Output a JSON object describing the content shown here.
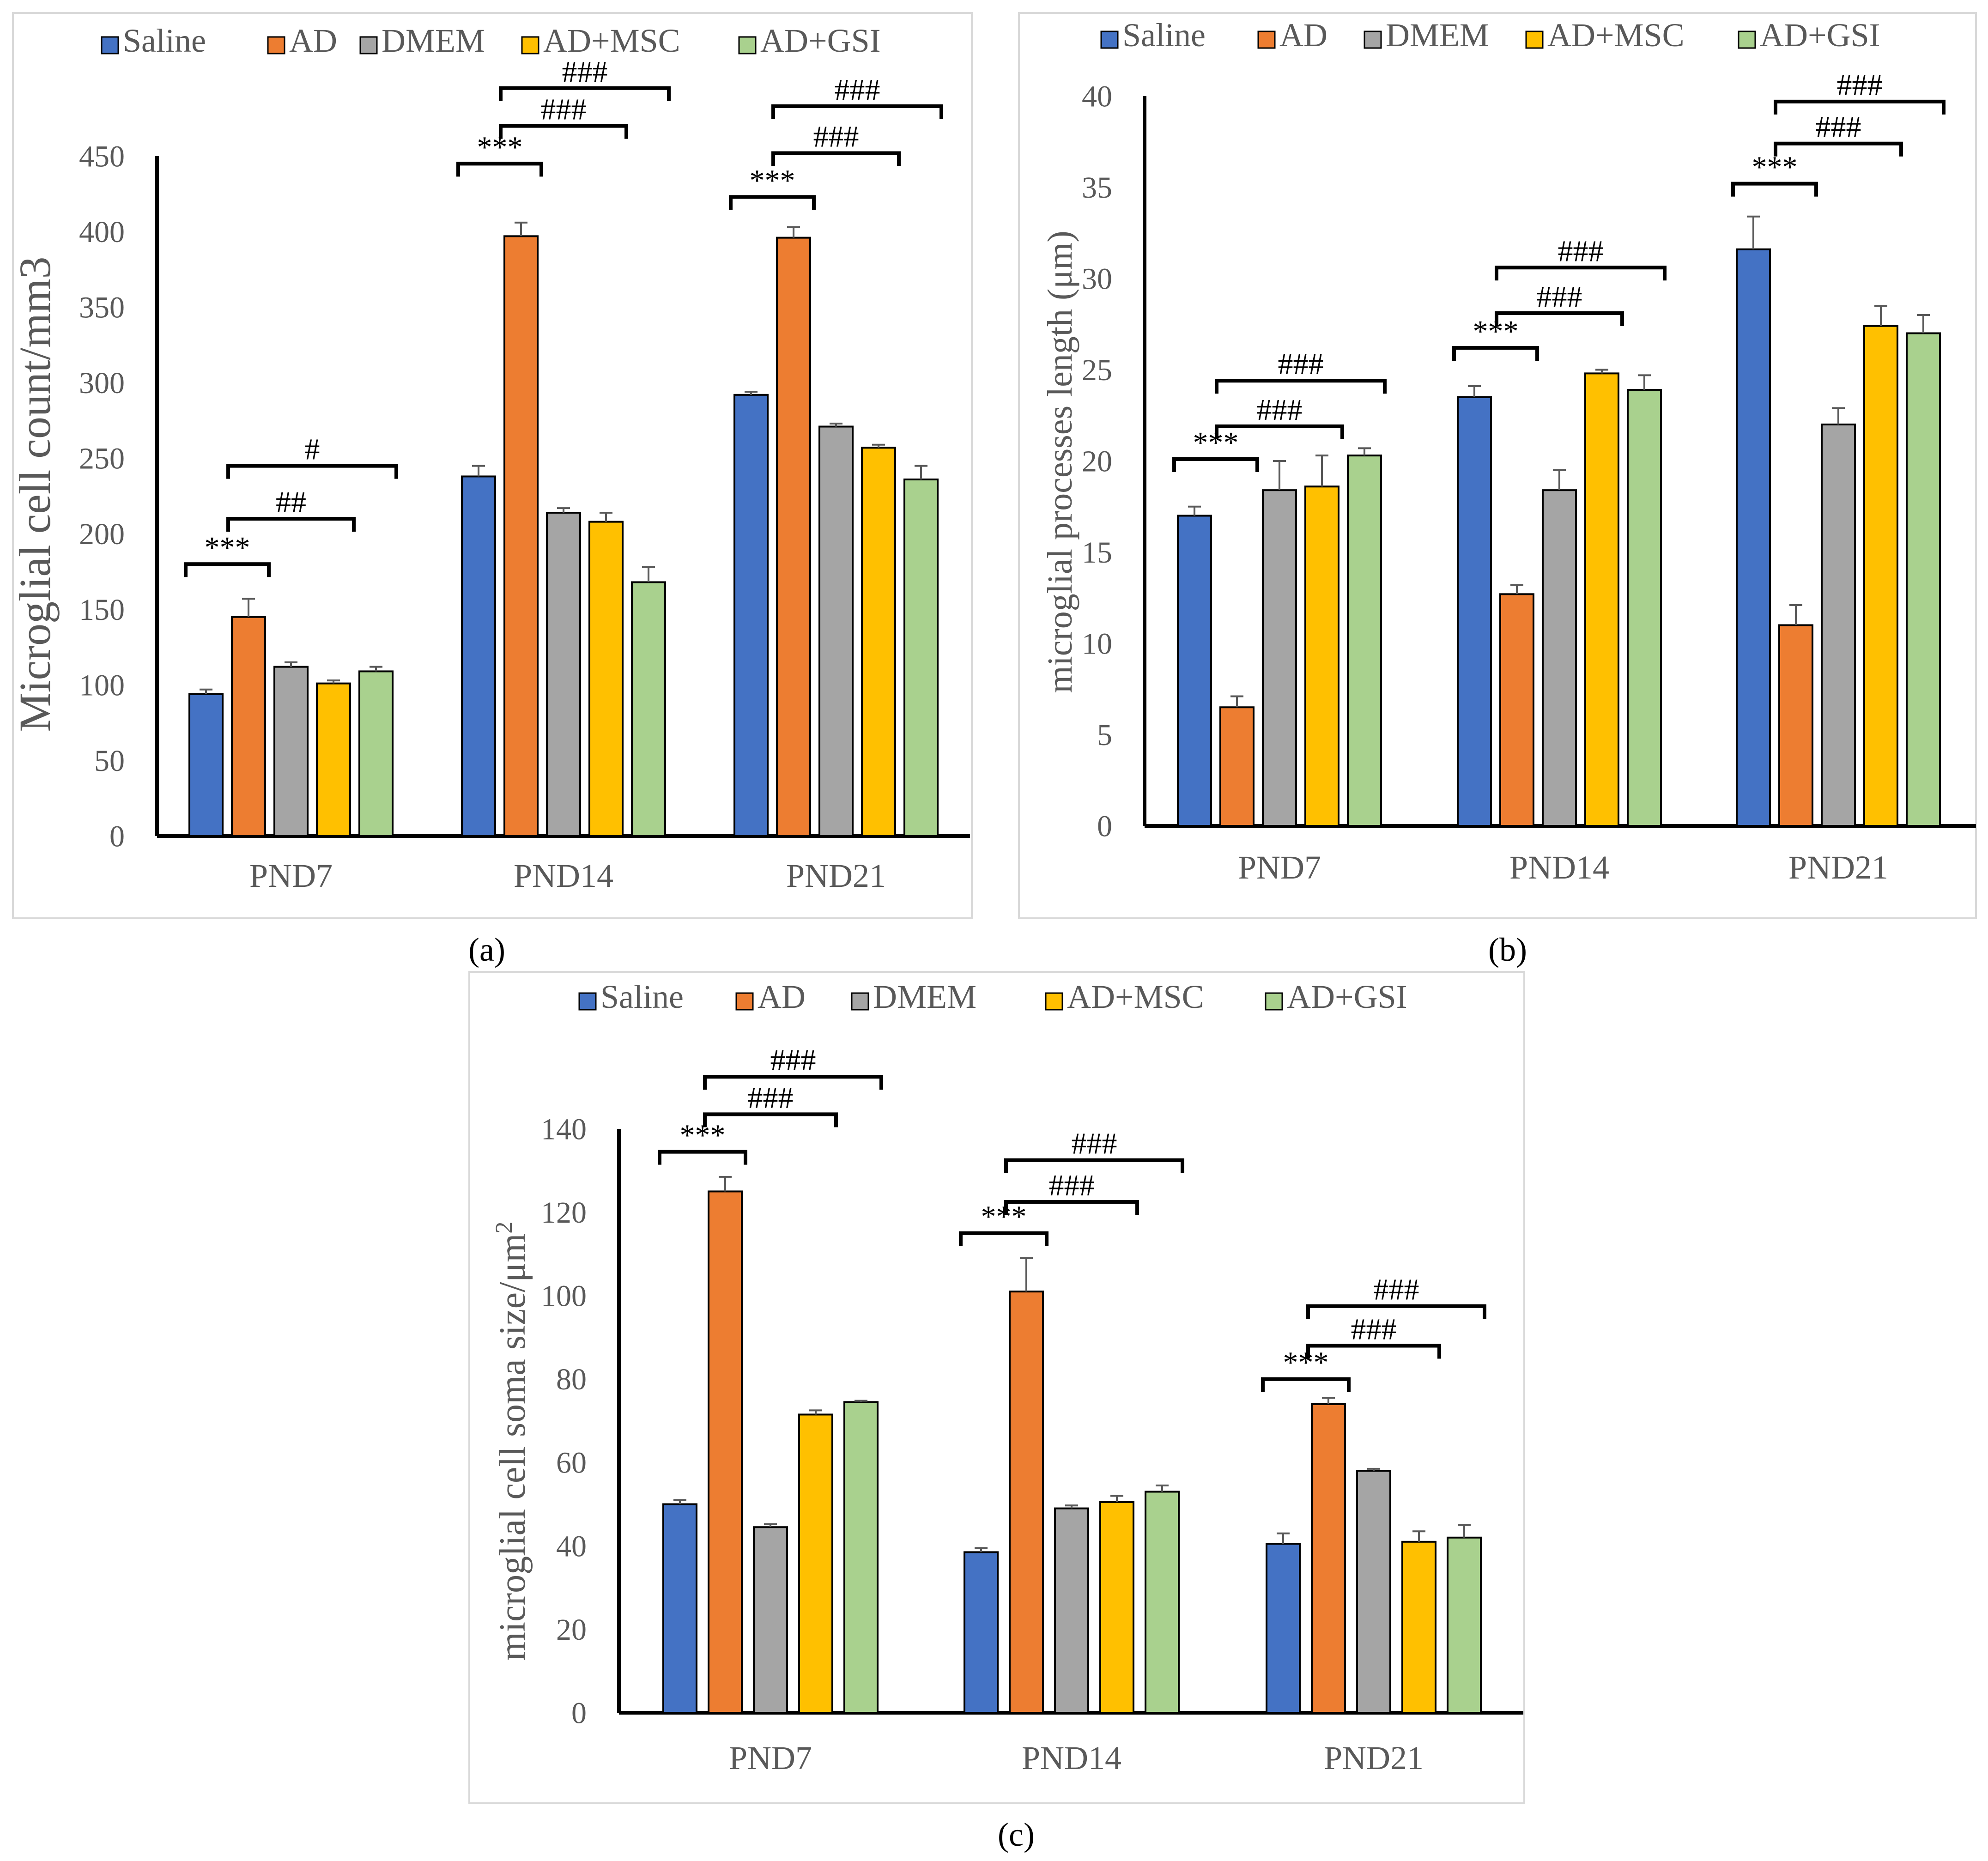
{
  "colors": {
    "saline": "#4472C4",
    "ad": "#ED7D31",
    "dmem": "#A5A5A5",
    "ad_msc": "#FFC000",
    "ad_gsi": "#A9D18E",
    "axis": "#000000",
    "tick_text": "#595959",
    "frame": "#D9D9D9"
  },
  "chart_data": [
    {
      "panel": "a",
      "panel_label": "(a)",
      "type": "bar",
      "title": "",
      "xlabel": "",
      "ylabel": "Microglial cell count/mm3",
      "ylim": [
        0,
        450
      ],
      "ytick_values": [
        0,
        50,
        100,
        150,
        200,
        250,
        300,
        350,
        400,
        450
      ],
      "ytick_labels": [
        "0",
        "50",
        "100",
        "150",
        "200",
        "250",
        "300",
        "350",
        "400",
        "450"
      ],
      "legend_position": "top",
      "categories": [
        "PND7",
        "PND14",
        "PND21"
      ],
      "series": [
        {
          "name": "Saline",
          "color": "#4472C4",
          "values": [
            94,
            238,
            292
          ],
          "errors": [
            3,
            7,
            2
          ]
        },
        {
          "name": "AD",
          "color": "#ED7D31",
          "values": [
            145,
            397,
            396
          ],
          "errors": [
            12,
            9,
            7
          ]
        },
        {
          "name": "DMEM",
          "color": "#A5A5A5",
          "values": [
            112,
            214,
            271
          ],
          "errors": [
            3,
            3,
            2
          ]
        },
        {
          "name": "AD+MSC",
          "color": "#FFC000",
          "values": [
            101,
            208,
            257
          ],
          "errors": [
            2,
            6,
            2
          ]
        },
        {
          "name": "AD+GSI",
          "color": "#A9D18E",
          "values": [
            109,
            168,
            236
          ],
          "errors": [
            3,
            10,
            9
          ]
        }
      ],
      "annotations": [
        {
          "category": 0,
          "from": 0,
          "to": 1,
          "text": "***",
          "y": 180
        },
        {
          "category": 0,
          "from": 1,
          "to": 3,
          "text": "##",
          "y": 210
        },
        {
          "category": 0,
          "from": 1,
          "to": 4,
          "text": "#",
          "y": 245
        },
        {
          "category": 1,
          "from": 0,
          "to": 1,
          "text": "***",
          "y": 445
        },
        {
          "category": 1,
          "from": 1,
          "to": 3,
          "text": "###",
          "y": 470
        },
        {
          "category": 1,
          "from": 1,
          "to": 4,
          "text": "###",
          "y": 495
        },
        {
          "category": 2,
          "from": 0,
          "to": 1,
          "text": "***",
          "y": 423
        },
        {
          "category": 2,
          "from": 1,
          "to": 3,
          "text": "###",
          "y": 452
        },
        {
          "category": 2,
          "from": 1,
          "to": 4,
          "text": "###",
          "y": 483
        }
      ]
    },
    {
      "panel": "b",
      "panel_label": "(b)",
      "type": "bar",
      "title": "",
      "xlabel": "",
      "ylabel": "microglial processes  length (μm)",
      "ylim": [
        0,
        40
      ],
      "ytick_values": [
        0,
        5,
        10,
        15,
        20,
        25,
        30,
        35,
        40
      ],
      "ytick_labels": [
        "0",
        "5",
        "10",
        "15",
        "20",
        "25",
        "30",
        "35",
        "40"
      ],
      "legend_position": "top",
      "categories": [
        "PND7",
        "PND14",
        "PND21"
      ],
      "series": [
        {
          "name": "Saline",
          "color": "#4472C4",
          "values": [
            17.0,
            23.5,
            31.6
          ],
          "errors": [
            0.5,
            0.6,
            1.8
          ]
        },
        {
          "name": "AD",
          "color": "#ED7D31",
          "values": [
            6.5,
            12.7,
            11.0
          ],
          "errors": [
            0.6,
            0.5,
            1.1
          ]
        },
        {
          "name": "DMEM",
          "color": "#A5A5A5",
          "values": [
            18.4,
            18.4,
            22.0
          ],
          "errors": [
            1.6,
            1.1,
            0.9
          ]
        },
        {
          "name": "AD+MSC",
          "color": "#FFC000",
          "values": [
            18.6,
            24.8,
            27.4
          ],
          "errors": [
            1.7,
            0.2,
            1.1
          ]
        },
        {
          "name": "AD+GSI",
          "color": "#A9D18E",
          "values": [
            20.3,
            23.9,
            27.0
          ],
          "errors": [
            0.4,
            0.8,
            1.0
          ]
        }
      ],
      "annotations": [
        {
          "category": 0,
          "from": 0,
          "to": 1,
          "text": "***",
          "y": 20.1
        },
        {
          "category": 0,
          "from": 1,
          "to": 3,
          "text": "###",
          "y": 21.9
        },
        {
          "category": 0,
          "from": 1,
          "to": 4,
          "text": "###",
          "y": 24.4
        },
        {
          "category": 1,
          "from": 0,
          "to": 1,
          "text": "***",
          "y": 26.2
        },
        {
          "category": 1,
          "from": 1,
          "to": 3,
          "text": "###",
          "y": 28.1
        },
        {
          "category": 1,
          "from": 1,
          "to": 4,
          "text": "###",
          "y": 30.6
        },
        {
          "category": 2,
          "from": 0,
          "to": 1,
          "text": "***",
          "y": 35.2
        },
        {
          "category": 2,
          "from": 1,
          "to": 3,
          "text": "###",
          "y": 37.4
        },
        {
          "category": 2,
          "from": 1,
          "to": 4,
          "text": "###",
          "y": 39.7
        }
      ]
    },
    {
      "panel": "c",
      "panel_label": "(c)",
      "type": "bar",
      "title": "",
      "xlabel": "",
      "ylabel": "microglial cell soma size/μm",
      "ylabel_superscript": "2",
      "ylim": [
        0,
        140
      ],
      "ytick_values": [
        0,
        20,
        40,
        60,
        80,
        100,
        120,
        140
      ],
      "ytick_labels": [
        "0",
        "20",
        "40",
        "60",
        "80",
        "100",
        "120",
        "140"
      ],
      "legend_position": "top",
      "categories": [
        "PND7",
        "PND14",
        "PND21"
      ],
      "series": [
        {
          "name": "Saline",
          "color": "#4472C4",
          "values": [
            50,
            38.5,
            40.5
          ],
          "errors": [
            1,
            1,
            2.5
          ]
        },
        {
          "name": "AD",
          "color": "#ED7D31",
          "values": [
            125,
            101,
            74
          ],
          "errors": [
            3.5,
            8,
            1.5
          ]
        },
        {
          "name": "DMEM",
          "color": "#A5A5A5",
          "values": [
            44.5,
            49,
            58
          ],
          "errors": [
            0.7,
            0.7,
            0.5
          ]
        },
        {
          "name": "AD+MSC",
          "color": "#FFC000",
          "values": [
            71.5,
            50.5,
            41
          ],
          "errors": [
            1,
            1.5,
            2.5
          ]
        },
        {
          "name": "AD+GSI",
          "color": "#A9D18E",
          "values": [
            74.5,
            53,
            42
          ],
          "errors": [
            0.3,
            1.5,
            3
          ]
        }
      ],
      "annotations": [
        {
          "category": 0,
          "from": 0,
          "to": 1,
          "text": "***",
          "y": 134.5
        },
        {
          "category": 0,
          "from": 1,
          "to": 3,
          "text": "###",
          "y": 143.5
        },
        {
          "category": 0,
          "from": 1,
          "to": 4,
          "text": "###",
          "y": 152.5
        },
        {
          "category": 1,
          "from": 0,
          "to": 1,
          "text": "***",
          "y": 115
        },
        {
          "category": 1,
          "from": 1,
          "to": 3,
          "text": "###",
          "y": 122.5
        },
        {
          "category": 1,
          "from": 1,
          "to": 4,
          "text": "###",
          "y": 132.5
        },
        {
          "category": 2,
          "from": 0,
          "to": 1,
          "text": "***",
          "y": 80
        },
        {
          "category": 2,
          "from": 1,
          "to": 3,
          "text": "###",
          "y": 88
        },
        {
          "category": 2,
          "from": 1,
          "to": 4,
          "text": "###",
          "y": 97.5
        }
      ]
    }
  ]
}
